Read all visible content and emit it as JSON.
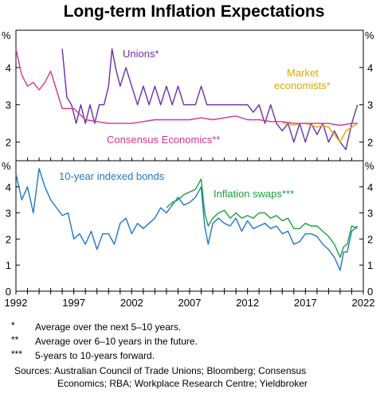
{
  "title": "Long-term Inflation Expectations",
  "chart_data": [
    {
      "type": "line",
      "title": "",
      "xlabel": "",
      "ylabel": "%",
      "xlim": [
        1992,
        2022
      ],
      "ylim": [
        1.5,
        5
      ],
      "yticks": [
        2,
        3,
        4
      ],
      "grid": false,
      "series": [
        {
          "name": "Unions*",
          "color": "#6a2fa8",
          "x": [
            1996.0,
            1996.4,
            1996.8,
            1997.2,
            1997.6,
            1998.0,
            1998.4,
            1998.8,
            1999.2,
            1999.6,
            2000.0,
            2000.3,
            2000.6,
            2001.0,
            2001.5,
            2002.0,
            2002.5,
            2003.0,
            2003.5,
            2004.0,
            2004.5,
            2005.0,
            2005.5,
            2006.0,
            2006.5,
            2007.0,
            2007.5,
            2008.0,
            2008.5,
            2009.0,
            2009.5,
            2010.0,
            2010.5,
            2011.0,
            2011.5,
            2012.0,
            2012.5,
            2013.0,
            2013.5,
            2014.0,
            2014.5,
            2015.0,
            2015.5,
            2016.0,
            2016.5,
            2017.0,
            2017.5,
            2018.0,
            2018.5,
            2019.0,
            2019.5,
            2020.0,
            2020.5,
            2021.0,
            2021.5
          ],
          "values": [
            4.5,
            3.2,
            3.0,
            2.5,
            3.0,
            2.5,
            3.0,
            2.5,
            3.0,
            3.0,
            3.5,
            4.5,
            4.0,
            3.5,
            4.0,
            3.5,
            3.0,
            3.5,
            3.0,
            3.5,
            3.0,
            3.5,
            3.0,
            3.5,
            3.0,
            3.0,
            3.0,
            3.5,
            3.0,
            3.0,
            3.0,
            3.0,
            3.0,
            3.0,
            3.0,
            3.0,
            2.8,
            3.0,
            2.5,
            3.0,
            2.5,
            2.3,
            2.5,
            2.0,
            2.5,
            2.0,
            2.5,
            2.2,
            2.5,
            2.0,
            2.3,
            2.0,
            1.8,
            2.5,
            3.0
          ]
        },
        {
          "name": "Market economists*",
          "color": "#e0a800",
          "x": [
            2015.0,
            2015.5,
            2016.0,
            2016.5,
            2017.0,
            2017.5,
            2018.0,
            2018.5,
            2019.0,
            2019.5,
            2020.0,
            2020.5,
            2021.0,
            2021.5
          ],
          "values": [
            2.5,
            2.5,
            2.45,
            2.5,
            2.5,
            2.45,
            2.4,
            2.45,
            2.4,
            2.2,
            2.0,
            2.3,
            2.4,
            2.5
          ]
        },
        {
          "name": "Consensus Economics**",
          "color": "#d6358d",
          "x": [
            1992.0,
            1992.5,
            1993.0,
            1993.5,
            1994.0,
            1994.5,
            1995.0,
            1995.5,
            1996.0,
            1996.5,
            1997.0,
            1997.5,
            1998.0,
            1999.0,
            2000.0,
            2001.0,
            2002.0,
            2003.0,
            2004.0,
            2005.0,
            2006.0,
            2007.0,
            2008.0,
            2009.0,
            2010.0,
            2011.0,
            2012.0,
            2013.0,
            2014.0,
            2015.0,
            2016.0,
            2017.0,
            2018.0,
            2019.0,
            2020.0,
            2021.0,
            2021.5
          ],
          "values": [
            4.5,
            3.8,
            3.5,
            3.6,
            3.4,
            3.6,
            3.9,
            3.4,
            2.9,
            2.9,
            2.9,
            2.75,
            2.6,
            2.55,
            2.5,
            2.5,
            2.5,
            2.55,
            2.6,
            2.6,
            2.6,
            2.6,
            2.65,
            2.6,
            2.65,
            2.7,
            2.6,
            2.6,
            2.55,
            2.55,
            2.5,
            2.5,
            2.5,
            2.5,
            2.45,
            2.5,
            2.5
          ]
        }
      ]
    },
    {
      "type": "line",
      "title": "",
      "xlabel": "",
      "ylabel": "%",
      "xlim": [
        1992,
        2022
      ],
      "ylim": [
        0,
        5
      ],
      "yticks": [
        0,
        1,
        2,
        3,
        4
      ],
      "xticks": [
        "1992",
        "1997",
        "2002",
        "2007",
        "2012",
        "2017",
        "2022"
      ],
      "grid": false,
      "series": [
        {
          "name": "10-year indexed bonds",
          "color": "#1f78c8",
          "x": [
            1992.0,
            1992.5,
            1993.0,
            1993.5,
            1994.0,
            1994.5,
            1995.0,
            1995.5,
            1996.0,
            1996.5,
            1997.0,
            1997.5,
            1998.0,
            1998.5,
            1999.0,
            1999.5,
            2000.0,
            2000.5,
            2001.0,
            2001.5,
            2002.0,
            2002.5,
            2003.0,
            2003.5,
            2004.0,
            2004.5,
            2005.0,
            2005.5,
            2006.0,
            2006.5,
            2007.0,
            2007.5,
            2008.0,
            2008.3,
            2008.6,
            2009.0,
            2009.5,
            2010.0,
            2010.5,
            2011.0,
            2011.5,
            2012.0,
            2012.5,
            2013.0,
            2013.5,
            2014.0,
            2014.5,
            2015.0,
            2015.5,
            2016.0,
            2016.5,
            2017.0,
            2017.5,
            2018.0,
            2018.5,
            2019.0,
            2019.5,
            2020.0,
            2020.3,
            2020.6,
            2021.0,
            2021.5
          ],
          "values": [
            4.5,
            3.5,
            4.0,
            3.0,
            4.7,
            4.0,
            3.5,
            3.2,
            2.9,
            3.0,
            2.0,
            2.2,
            1.8,
            2.3,
            1.6,
            2.2,
            2.2,
            1.8,
            2.6,
            2.8,
            2.2,
            2.6,
            2.4,
            2.6,
            2.8,
            3.2,
            3.0,
            3.3,
            3.6,
            3.3,
            3.4,
            3.6,
            4.0,
            2.5,
            1.8,
            2.6,
            2.8,
            2.6,
            2.5,
            2.8,
            2.3,
            2.7,
            2.4,
            2.5,
            2.6,
            2.4,
            2.5,
            2.2,
            2.3,
            1.8,
            1.9,
            2.2,
            2.2,
            2.1,
            1.8,
            1.6,
            1.3,
            0.8,
            1.5,
            1.5,
            2.3,
            2.5
          ]
        },
        {
          "name": "Inflation swaps***",
          "color": "#1ea03a",
          "x": [
            2005.0,
            2005.5,
            2006.0,
            2006.5,
            2007.0,
            2007.5,
            2008.0,
            2008.3,
            2008.6,
            2009.0,
            2009.5,
            2010.0,
            2010.5,
            2011.0,
            2011.5,
            2012.0,
            2012.5,
            2013.0,
            2013.5,
            2014.0,
            2014.5,
            2015.0,
            2015.5,
            2016.0,
            2016.5,
            2017.0,
            2017.5,
            2018.0,
            2018.5,
            2019.0,
            2019.5,
            2020.0,
            2020.3,
            2020.6,
            2021.0,
            2021.5
          ],
          "values": [
            3.2,
            3.4,
            3.5,
            3.7,
            3.8,
            3.9,
            4.3,
            3.0,
            2.5,
            2.8,
            3.0,
            3.1,
            2.8,
            3.0,
            2.8,
            2.9,
            2.8,
            3.0,
            3.0,
            2.8,
            2.9,
            2.7,
            2.8,
            2.4,
            2.4,
            2.6,
            2.5,
            2.5,
            2.3,
            2.1,
            1.8,
            1.3,
            1.7,
            1.8,
            2.5,
            2.4
          ]
        }
      ]
    }
  ],
  "footnotes": [
    {
      "mark": "*",
      "text": "Average over the next 5–10 years."
    },
    {
      "mark": "**",
      "text": "Average over 6–10 years in the future."
    },
    {
      "mark": "***",
      "text": "5-years to 10-years forward."
    }
  ],
  "sources_line1": "Sources: Australian Council of Trade Unions; Bloomberg; Consensus",
  "sources_line2": "Economics; RBA; Workplace Research Centre; Yieldbroker"
}
